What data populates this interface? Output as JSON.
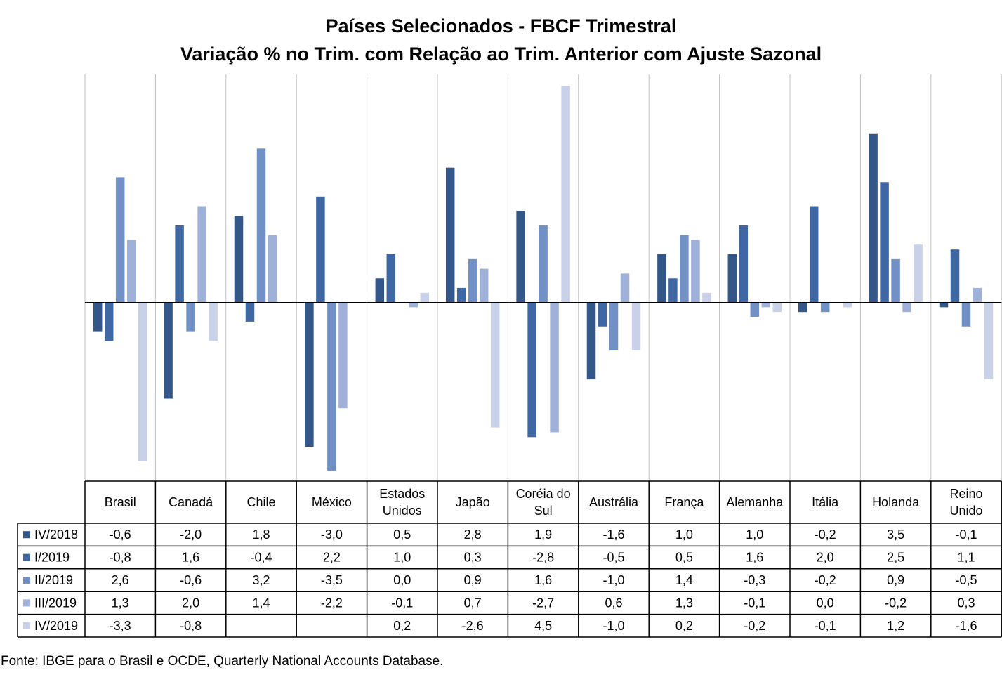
{
  "title": "Países Selecionados - FBCF Trimestral",
  "subtitle": "Variação % no Trim. com Relação ao Trim. Anterior com Ajuste Sazonal",
  "source": "Fonte: IBGE para o Brasil e OCDE, Quarterly National Accounts Database.",
  "chart_data": {
    "type": "bar",
    "title": "Países Selecionados - FBCF Trimestral",
    "subtitle": "Variação % no Trim. com Relação ao Trim. Anterior com Ajuste Sazonal",
    "categories": [
      [
        "Brasil"
      ],
      [
        "Canadá"
      ],
      [
        "Chile"
      ],
      [
        "México"
      ],
      [
        "Estados",
        "Unidos"
      ],
      [
        "Japão"
      ],
      [
        "Coréia do",
        "Sul"
      ],
      [
        "Austrália"
      ],
      [
        "França"
      ],
      [
        "Alemanha"
      ],
      [
        "Itália"
      ],
      [
        "Holanda"
      ],
      [
        "Reino",
        "Unido"
      ]
    ],
    "ylim": [
      -3.5,
      4.5
    ],
    "grid": false,
    "legend": "data-table-left",
    "series": [
      {
        "name": "IV/2018",
        "color": "#34578a",
        "values": [
          "-0,6",
          "-2,0",
          "1,8",
          "-3,0",
          "0,5",
          "2,8",
          "1,9",
          "-1,6",
          "1,0",
          "1,0",
          "-0,2",
          "3,5",
          "-0,1"
        ]
      },
      {
        "name": "I/2019",
        "color": "#3e67a4",
        "values": [
          "-0,8",
          "1,6",
          "-0,4",
          "2,2",
          "1,0",
          "0,3",
          "-2,8",
          "-0,5",
          "0,5",
          "1,6",
          "2,0",
          "2,5",
          "1,1"
        ]
      },
      {
        "name": "II/2019",
        "color": "#7190c6",
        "values": [
          "2,6",
          "-0,6",
          "3,2",
          "-3,5",
          "0,0",
          "0,9",
          "1,6",
          "-1,0",
          "1,4",
          "-0,3",
          "-0,2",
          "0,9",
          "-0,5"
        ]
      },
      {
        "name": "III/2019",
        "color": "#9fb1d8",
        "values": [
          "1,3",
          "2,0",
          "1,4",
          "-2,2",
          "-0,1",
          "0,7",
          "-2,7",
          "0,6",
          "1,3",
          "-0,1",
          "0,0",
          "-0,2",
          "0,3"
        ]
      },
      {
        "name": "IV/2019",
        "color": "#c8d1e7",
        "values": [
          "-3,3",
          "-0,8",
          "",
          "",
          "0,2",
          "-2,6",
          "4,5",
          "-1,0",
          "0,2",
          "-0,2",
          "-0,1",
          "1,2",
          "-1,6"
        ]
      }
    ]
  }
}
